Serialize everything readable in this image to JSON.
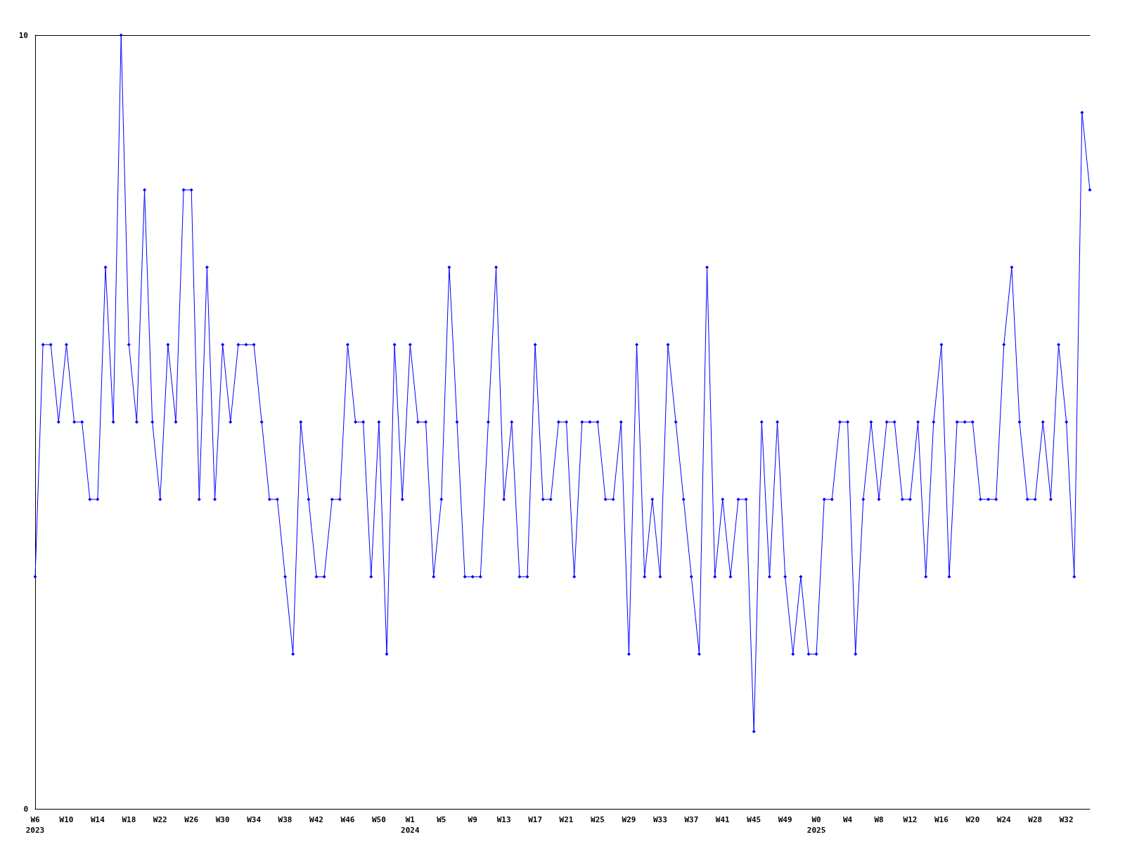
{
  "chart_data": {
    "type": "line",
    "categories": [
      "W6\n2023",
      null,
      null,
      null,
      "W10",
      null,
      null,
      null,
      "W14",
      null,
      null,
      null,
      "W18",
      null,
      null,
      null,
      "W22",
      null,
      null,
      null,
      "W26",
      null,
      null,
      null,
      "W30",
      null,
      null,
      null,
      "W34",
      null,
      null,
      null,
      "W38",
      null,
      null,
      null,
      "W42",
      null,
      null,
      null,
      "W46",
      null,
      null,
      null,
      "W50",
      null,
      null,
      null,
      "W1\n2024",
      null,
      null,
      null,
      "W5",
      null,
      null,
      null,
      "W9",
      null,
      null,
      null,
      "W13",
      null,
      null,
      null,
      "W17",
      null,
      null,
      null,
      "W21",
      null,
      null,
      null,
      "W25",
      null,
      null,
      null,
      "W29",
      null,
      null,
      null,
      "W33",
      null,
      null,
      null,
      "W37",
      null,
      null,
      null,
      "W41",
      null,
      null,
      null,
      "W45",
      null,
      null,
      null,
      "W49",
      null,
      null,
      null,
      "W0\n2025",
      null,
      null,
      null,
      "W4",
      null,
      null,
      null,
      "W8",
      null,
      null,
      null,
      "W12",
      null,
      null,
      null,
      "W16",
      null,
      null,
      null,
      "W20",
      null,
      null,
      null,
      "W24",
      null,
      null,
      null,
      "W28",
      null,
      null,
      null,
      "W32",
      null,
      null,
      null
    ],
    "series": [
      {
        "color": "#0000ff",
        "values": [
          3,
          6,
          6,
          5,
          6,
          5,
          5,
          4,
          4,
          7,
          5,
          10,
          6,
          5,
          8,
          5,
          4,
          6,
          5,
          8,
          8,
          4,
          7,
          4,
          6,
          5,
          6,
          6,
          6,
          5,
          4,
          4,
          3,
          2,
          5,
          4,
          3,
          3,
          4,
          4,
          6,
          5,
          5,
          3,
          5,
          2,
          6,
          4,
          6,
          5,
          5,
          3,
          4,
          7,
          5,
          3,
          3,
          3,
          5,
          7,
          4,
          5,
          3,
          3,
          6,
          4,
          4,
          5,
          5,
          3,
          5,
          5,
          5,
          4,
          4,
          5,
          2,
          6,
          3,
          4,
          3,
          6,
          5,
          4,
          3,
          2,
          7,
          3,
          4,
          3,
          4,
          4,
          1,
          5,
          3,
          5,
          3,
          2,
          3,
          2,
          2,
          4,
          4,
          5,
          5,
          2,
          4,
          5,
          4,
          5,
          5,
          4,
          4,
          5,
          3,
          5,
          6,
          3,
          5,
          5,
          5,
          4,
          4,
          4,
          6,
          7,
          5,
          4,
          4,
          5,
          4,
          6,
          5,
          3,
          9,
          8
        ]
      }
    ],
    "ylim": [
      0,
      10
    ],
    "yticks": [
      0,
      10
    ],
    "marker": "diamond",
    "line_style": "solid"
  }
}
